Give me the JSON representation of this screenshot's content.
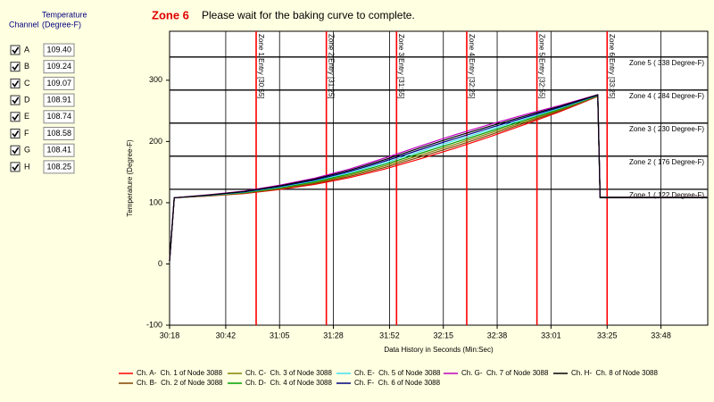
{
  "sidebar": {
    "channel_header": "Channel",
    "temp_header": [
      "Temperature",
      "(Degree-F)"
    ],
    "channels": [
      {
        "label": "A",
        "value": "109.40",
        "checked": true
      },
      {
        "label": "B",
        "value": "109.24",
        "checked": true
      },
      {
        "label": "C",
        "value": "109.07",
        "checked": true
      },
      {
        "label": "D",
        "value": "108.91",
        "checked": true
      },
      {
        "label": "E",
        "value": "108.74",
        "checked": true
      },
      {
        "label": "F",
        "value": "108.58",
        "checked": true
      },
      {
        "label": "G",
        "value": "108.41",
        "checked": true
      },
      {
        "label": "H",
        "value": "108.25",
        "checked": true
      }
    ]
  },
  "header": {
    "zone": "Zone 6",
    "message": "Please wait for the baking curve to complete."
  },
  "chart_data": {
    "type": "line",
    "y_label": "Temperature (Degree-F)",
    "x_label": "Data History in Seconds (Min:Sec)",
    "x": [
      1818,
      1820,
      1835,
      1850,
      1865,
      1880,
      1895,
      1910,
      1925,
      1940,
      1955,
      1970,
      1985,
      2001,
      2002,
      2048
    ],
    "xlim": [
      1818,
      2048
    ],
    "xticks": [
      {
        "value": 1818,
        "label": "30:18"
      },
      {
        "value": 1842,
        "label": "30:42"
      },
      {
        "value": 1865,
        "label": "31:05"
      },
      {
        "value": 1888,
        "label": "31:28"
      },
      {
        "value": 1912,
        "label": "31:52"
      },
      {
        "value": 1935,
        "label": "32:15"
      },
      {
        "value": 1958,
        "label": "32:38"
      },
      {
        "value": 1981,
        "label": "33:01"
      },
      {
        "value": 2005,
        "label": "33:25"
      },
      {
        "value": 2028,
        "label": "33:48"
      }
    ],
    "ylim": [
      -100,
      380
    ],
    "yticks": [
      -100,
      0,
      100,
      200,
      300
    ],
    "xgrid": true,
    "zone_levels": [
      {
        "value": 338,
        "label": "Zone 5 ( 338 Degree-F)"
      },
      {
        "value": 284,
        "label": "Zone 4 ( 284 Degree-F)"
      },
      {
        "value": 230,
        "label": "Zone 3 ( 230 Degree-F)"
      },
      {
        "value": 176,
        "label": "Zone 2 ( 176 Degree-F)"
      },
      {
        "value": 122,
        "label": "Zone 1 ( 122 Degree-F)"
      }
    ],
    "zone_entries": [
      {
        "value": 1855,
        "label": "Zone 1 Entry [30:55]"
      },
      {
        "value": 1885,
        "label": "Zone 2 Entry [31:25]"
      },
      {
        "value": 1915,
        "label": "Zone 3 Entry [31:55]"
      },
      {
        "value": 1945,
        "label": "Zone 4 Entry [32:25]"
      },
      {
        "value": 1975,
        "label": "Zone 5 Entry [32:55]"
      },
      {
        "value": 2005,
        "label": "Zone 6 Entry [33:25]"
      }
    ],
    "series": [
      {
        "name": "Ch. A-  Ch. 1 of Node 3088",
        "color": "#ff0000",
        "values": [
          5,
          108,
          111,
          115,
          121.5,
          130,
          141,
          155,
          171.5,
          189,
          208,
          228,
          249,
          273.5,
          109.4,
          109.4
        ]
      },
      {
        "name": "Ch. B-  Ch. 2 of Node 3088",
        "color": "#804000",
        "values": [
          5,
          108,
          111.3,
          115.6,
          122.5,
          131.4,
          143,
          157.6,
          174.5,
          192.1,
          210.9,
          230.3,
          250.4,
          273.9,
          109.24,
          109.24
        ]
      },
      {
        "name": "Ch. C-  Ch. 3 of Node 3088",
        "color": "#808000",
        "values": [
          5,
          108,
          111.6,
          116.1,
          123.5,
          132.9,
          145,
          160.1,
          177.5,
          195.3,
          213.7,
          232.6,
          251.9,
          274.4,
          109.07,
          109.07
        ]
      },
      {
        "name": "Ch. D-  Ch. 4 of Node 3088",
        "color": "#00a000",
        "values": [
          5,
          108,
          111.9,
          116.7,
          124.5,
          134.3,
          147,
          162.7,
          180.5,
          198.4,
          216.6,
          234.9,
          253.3,
          274.8,
          108.91,
          108.91
        ]
      },
      {
        "name": "Ch. E-  Ch. 5 of Node 3088",
        "color": "#40e0f0",
        "values": [
          5,
          108,
          112.1,
          117.3,
          125.5,
          135.7,
          149,
          165.3,
          183.5,
          201.6,
          219.4,
          237.1,
          254.7,
          275.2,
          108.74,
          108.74
        ]
      },
      {
        "name": "Ch. F-  Ch. 6 of Node 3088",
        "color": "#000080",
        "values": [
          5,
          108,
          112.4,
          117.9,
          126.5,
          137.1,
          151,
          167.9,
          186.5,
          204.7,
          222.3,
          239.4,
          256.1,
          275.6,
          108.58,
          108.58
        ]
      },
      {
        "name": "Ch. G-  Ch. 7 of Node 3088",
        "color": "#c000c0",
        "values": [
          5,
          108,
          113,
          119,
          128.5,
          140,
          155,
          173,
          192.5,
          211,
          228,
          244,
          259,
          276.5,
          108.41,
          108.41
        ]
      },
      {
        "name": "Ch. H-  Ch. 8 of Node 3088",
        "color": "#000000",
        "values": [
          5,
          108,
          112.7,
          118.4,
          127.5,
          138.6,
          153,
          170.4,
          189.5,
          207.9,
          225.1,
          241.7,
          257.6,
          276.1,
          108.25,
          108.25
        ]
      }
    ]
  }
}
